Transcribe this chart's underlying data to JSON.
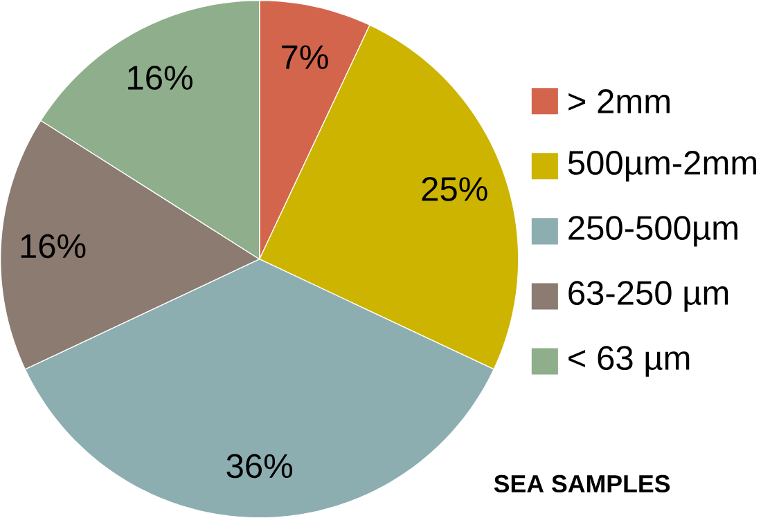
{
  "chart_data": {
    "type": "pie",
    "title": "SEA SAMPLES",
    "categories": [
      "> 2mm",
      "500µm-2mm",
      "250-500µm",
      "63-250 µm",
      "< 63 µm"
    ],
    "values": [
      7,
      25,
      36,
      16,
      16
    ],
    "value_labels": [
      "7%",
      "25%",
      "36%",
      "16%",
      "16%"
    ],
    "colors": [
      "#d4654d",
      "#cdb400",
      "#8daeb0",
      "#8b7b71",
      "#8fae8b"
    ],
    "legend": "right"
  }
}
